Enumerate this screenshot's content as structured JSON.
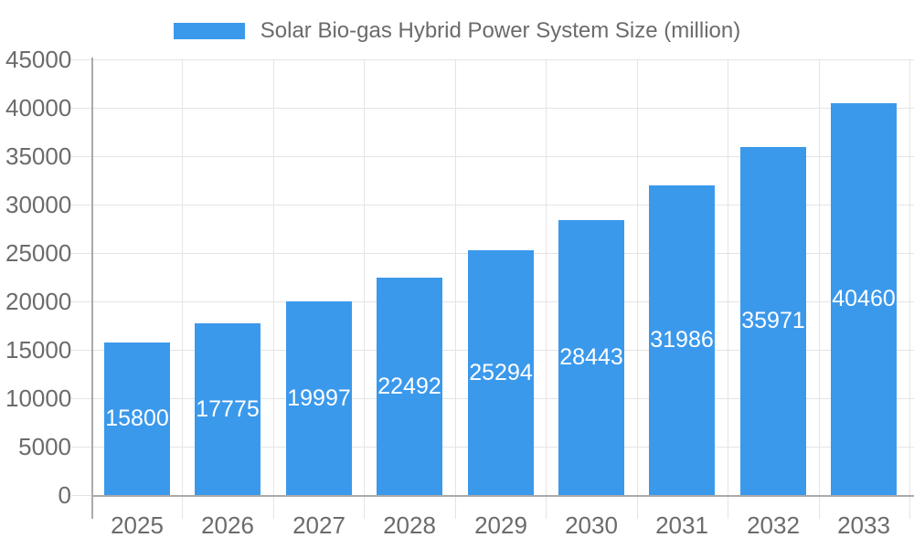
{
  "chart": {
    "legend_label": "Solar Bio-gas Hybrid Power System Size (million)",
    "colors": {
      "bar": "#3B99EC",
      "grid": "#E4E4E4",
      "axis": "#AAAAAA",
      "tick_text": "#6B6B6B",
      "bar_label_text": "#FFFFFF",
      "background": "#FFFFFF"
    }
  },
  "chart_data": {
    "type": "bar",
    "title": "Solar Bio-gas Hybrid Power System Size (million)",
    "categories": [
      "2025",
      "2026",
      "2027",
      "2028",
      "2029",
      "2030",
      "2031",
      "2032",
      "2033"
    ],
    "values": [
      15800,
      17775,
      19997,
      22492,
      25294,
      28443,
      31986,
      35971,
      40460
    ],
    "xlabel": "",
    "ylabel": "",
    "ylim": [
      0,
      45000
    ],
    "ytick_step": 5000,
    "yticks": [
      0,
      5000,
      10000,
      15000,
      20000,
      25000,
      30000,
      35000,
      40000,
      45000
    ],
    "grid": true,
    "legend_position": "top",
    "bar_value_labels": "inside-center"
  }
}
